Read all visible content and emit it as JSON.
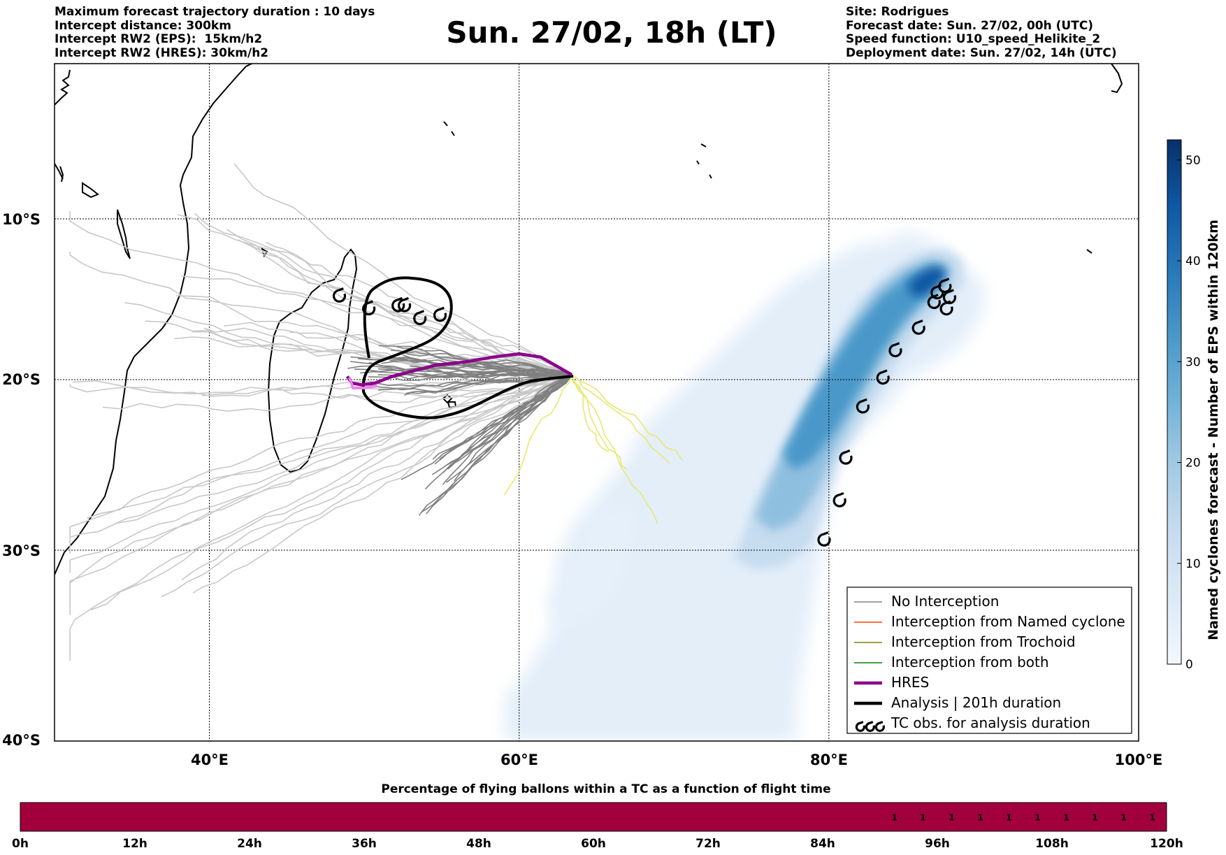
{
  "header_left": [
    "Maximum forecast trajectory duration : 10 days",
    "Intercept distance: 300km",
    "Intercept RW2 (EPS):  15km/h2",
    "Intercept RW2 (HRES): 30km/h2"
  ],
  "header_right": [
    "Site: Rodrigues",
    "Forecast date: Sun. 27/02, 00h (UTC)",
    "Speed function: U10_speed_Helikite_2",
    "Deployment date: Sun. 27/02, 14h (UTC)"
  ],
  "title": "Sun. 27/02, 18h (LT)",
  "map": {
    "lon_range": [
      30,
      100
    ],
    "lat_range": [
      -40,
      0
    ],
    "lon_ticks": [
      "40°E",
      "60°E",
      "80°E",
      "100°E"
    ],
    "lat_ticks": [
      "10°S",
      "20°S",
      "30°S",
      "40°S"
    ],
    "launch_site": [
      63.4,
      -19.7
    ]
  },
  "colorbar": {
    "label": "Named cyclones forecast - Number of EPS within 120km",
    "ticks": [
      "0",
      "10",
      "20",
      "30",
      "40",
      "50"
    ],
    "min": 0,
    "max": 52,
    "colors": [
      "#f2f7fd",
      "#dceaf6",
      "#c7dcef",
      "#a3cbe3",
      "#73b2d8",
      "#4a98c9",
      "#2878b8",
      "#0e58a3",
      "#08306b"
    ]
  },
  "legend": [
    {
      "label": "No Interception",
      "color": "#808080",
      "style": "thin"
    },
    {
      "label": "Interception from Named cyclone",
      "color": "#ff4500",
      "style": "thin"
    },
    {
      "label": "Interception from Trochoid",
      "color": "#808000",
      "style": "thin"
    },
    {
      "label": "Interception from both",
      "color": "#008000",
      "style": "thin"
    },
    {
      "label": "HRES",
      "color": "#8b008b",
      "style": "thick"
    },
    {
      "label": "Analysis | 201h duration",
      "color": "#000000",
      "style": "thick"
    },
    {
      "label": "TC obs. for analysis duration",
      "color": "#000000",
      "style": "symbol"
    }
  ],
  "tc_obs_symbol": "cyclone-symbol-icon",
  "tc_track": [
    [
      87.5,
      -14.2
    ],
    [
      87.0,
      -14.6
    ],
    [
      87.8,
      -14.9
    ],
    [
      86.8,
      -15.2
    ],
    [
      87.6,
      -15.6
    ],
    [
      85.8,
      -16.8
    ],
    [
      84.3,
      -18.2
    ],
    [
      83.5,
      -19.9
    ],
    [
      82.2,
      -21.6
    ],
    [
      81.1,
      -24.6
    ],
    [
      80.7,
      -27.1
    ],
    [
      79.7,
      -29.4
    ]
  ],
  "tc_obs_west": [
    [
      48.4,
      -14.8
    ],
    [
      50.3,
      -15.6
    ],
    [
      52.2,
      -15.4
    ],
    [
      52.6,
      -15.4
    ],
    [
      53.6,
      -16.2
    ],
    [
      54.9,
      -16.0
    ]
  ],
  "hres_track": [
    [
      63.4,
      -19.7
    ],
    [
      62.5,
      -19.2
    ],
    [
      61.4,
      -18.6
    ],
    [
      60.0,
      -18.4
    ],
    [
      58.3,
      -18.6
    ],
    [
      56.5,
      -18.9
    ],
    [
      54.6,
      -19.1
    ],
    [
      53.0,
      -19.5
    ],
    [
      51.8,
      -19.8
    ],
    [
      50.7,
      -20.2
    ],
    [
      49.8,
      -20.3
    ],
    [
      49.2,
      -20.2
    ],
    [
      48.9,
      -19.8
    ]
  ],
  "flight_time_bar": {
    "title": "Percentage of flying ballons within a TC as a function of flight time",
    "ticks": [
      "0h",
      "12h",
      "24h",
      "36h",
      "48h",
      "60h",
      "72h",
      "84h",
      "96h",
      "108h",
      "120h"
    ],
    "max_hours": 120,
    "values_start_hour": 90,
    "values_step_hours": 3,
    "values": [
      1,
      1,
      1,
      1,
      1,
      1,
      1,
      1,
      1,
      1
    ],
    "color": "#a1003c"
  }
}
